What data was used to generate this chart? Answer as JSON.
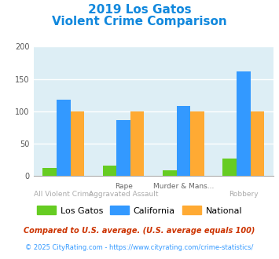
{
  "title_line1": "2019 Los Gatos",
  "title_line2": "Violent Crime Comparison",
  "title_color": "#1188dd",
  "cat_top_labels": [
    "",
    "Rape",
    "Murder & Mans...",
    ""
  ],
  "cat_bot_labels": [
    "All Violent Crime",
    "Aggravated Assault",
    "",
    "Robbery"
  ],
  "los_gatos": [
    13,
    16,
    9,
    27
  ],
  "california": [
    118,
    87,
    108,
    162
  ],
  "national": [
    100,
    100,
    100,
    100
  ],
  "los_gatos_color": "#66cc22",
  "california_color": "#3399ff",
  "national_color": "#ffaa33",
  "ylim": [
    0,
    200
  ],
  "yticks": [
    0,
    50,
    100,
    150,
    200
  ],
  "plot_bg_color": "#ddeef5",
  "grid_color": "#ffffff",
  "footnote1": "Compared to U.S. average. (U.S. average equals 100)",
  "footnote2": "© 2025 CityRating.com - https://www.cityrating.com/crime-statistics/",
  "footnote1_color": "#cc3300",
  "footnote2_color": "#3399ff",
  "legend_labels": [
    "Los Gatos",
    "California",
    "National"
  ]
}
